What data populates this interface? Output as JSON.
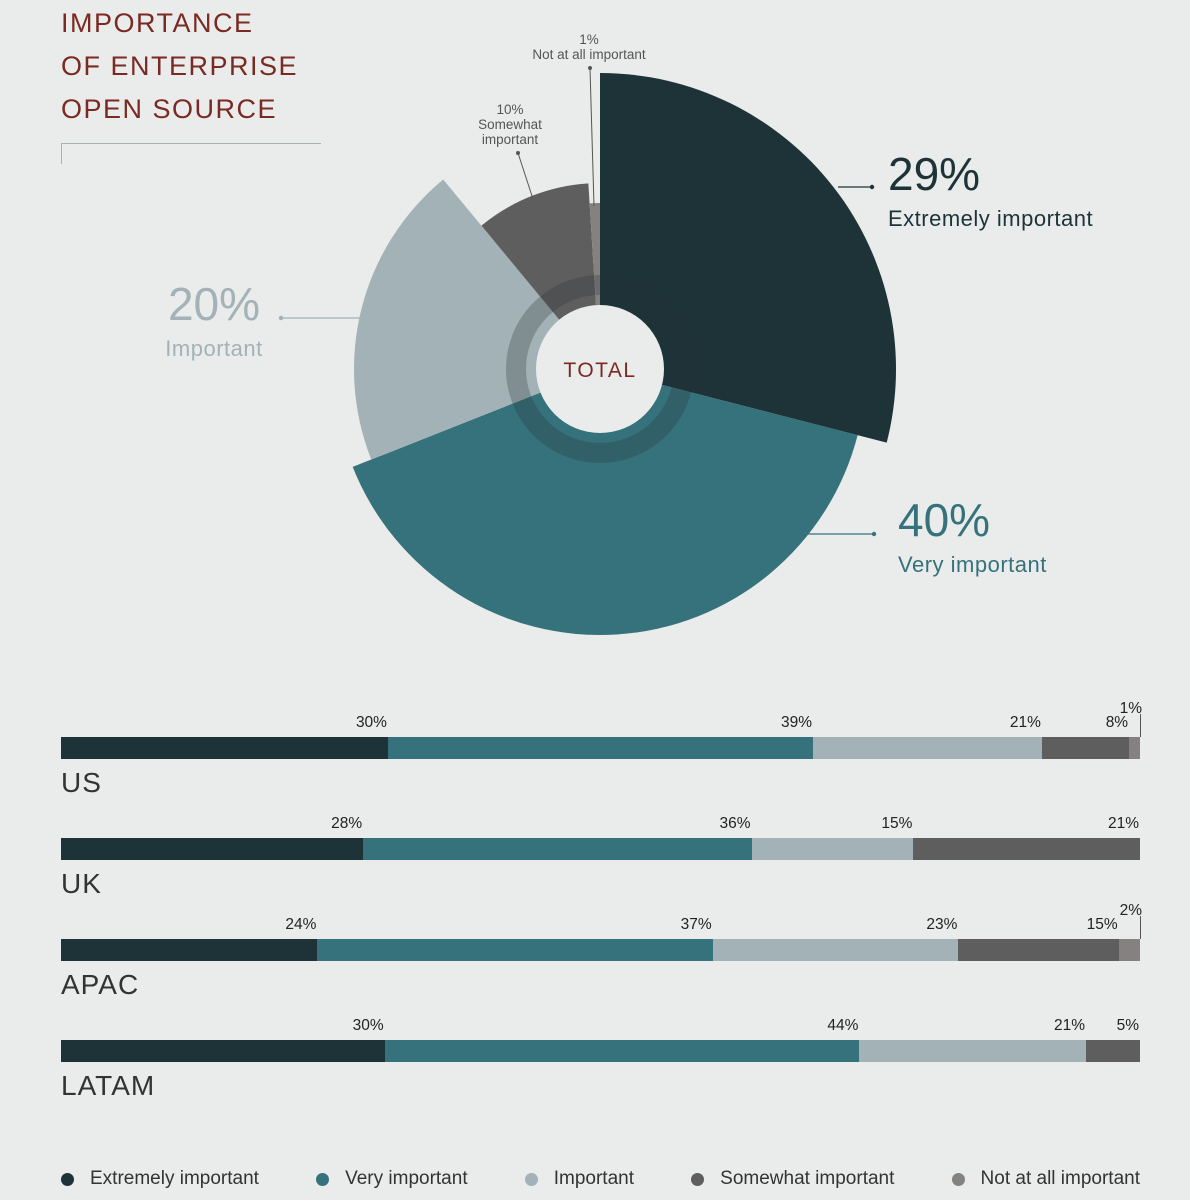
{
  "title_lines": [
    "IMPORTANCE",
    "OF ENTERPRISE",
    "OPEN SOURCE"
  ],
  "colors": {
    "extremely": "#1d3338",
    "very": "#36727c",
    "important": "#a2b2b6",
    "somewhat": "#5f5e5e",
    "not_at_all": "#858181"
  },
  "chart_data": [
    {
      "type": "pie",
      "center_label": "TOTAL",
      "slices": [
        {
          "key": "extremely",
          "label": "Extremely important",
          "value": 29,
          "display": "29%"
        },
        {
          "key": "very",
          "label": "Very important",
          "value": 40,
          "display": "40%"
        },
        {
          "key": "important",
          "label": "Important",
          "value": 20,
          "display": "20%"
        },
        {
          "key": "somewhat",
          "label": "Somewhat important",
          "value": 10,
          "display": "10%"
        },
        {
          "key": "not_at_all",
          "label": "Not at all important",
          "value": 1,
          "display": "1%"
        }
      ],
      "small_labels": {
        "somewhat": [
          "10%",
          "Somewhat",
          "important"
        ],
        "not_at_all": [
          "1%",
          "Not at all important"
        ]
      }
    },
    {
      "type": "bar",
      "orientation": "horizontal",
      "stacked": true,
      "series_order": [
        "extremely",
        "very",
        "important",
        "somewhat",
        "not_at_all"
      ],
      "regions": [
        {
          "name": "US",
          "values": [
            30,
            39,
            21,
            8,
            1
          ],
          "labels": [
            "30%",
            "39%",
            "21%",
            "8%",
            "1%"
          ]
        },
        {
          "name": "UK",
          "values": [
            28,
            36,
            15,
            21,
            0
          ],
          "labels": [
            "28%",
            "36%",
            "15%",
            "21%",
            ""
          ]
        },
        {
          "name": "APAC",
          "values": [
            24,
            37,
            23,
            15,
            2
          ],
          "labels": [
            "24%",
            "37%",
            "23%",
            "15%",
            "2%"
          ]
        },
        {
          "name": "LATAM",
          "values": [
            30,
            44,
            21,
            5,
            0
          ],
          "labels": [
            "30%",
            "44%",
            "21%",
            "5%",
            ""
          ]
        }
      ]
    }
  ],
  "legend": [
    {
      "key": "extremely",
      "label": "Extremely important"
    },
    {
      "key": "very",
      "label": "Very important"
    },
    {
      "key": "important",
      "label": "Important"
    },
    {
      "key": "somewhat",
      "label": "Somewhat important"
    },
    {
      "key": "not_at_all",
      "label": "Not at all important"
    }
  ]
}
